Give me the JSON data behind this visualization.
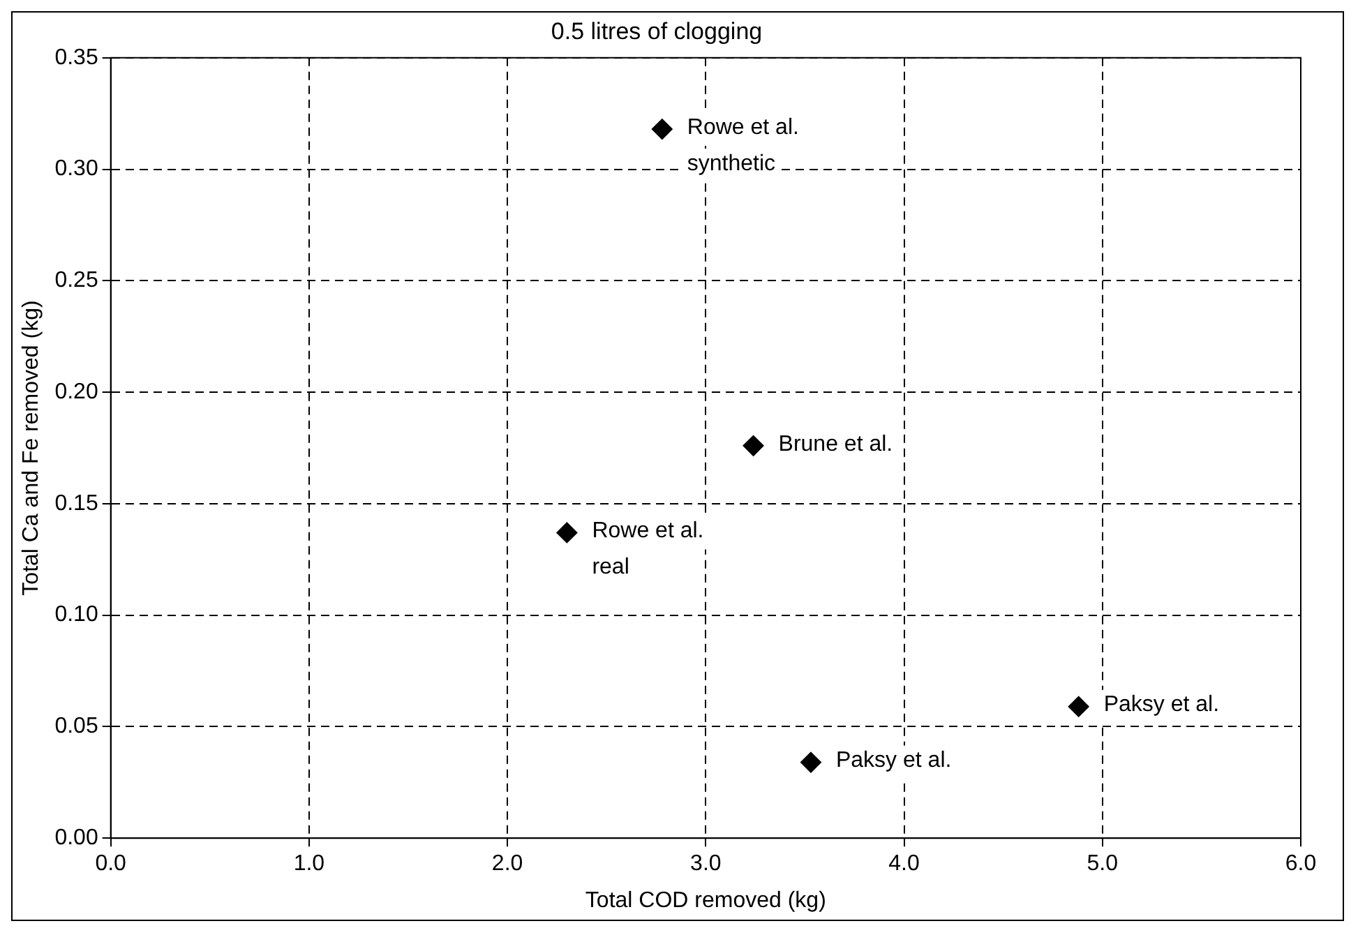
{
  "chart_data": {
    "type": "scatter",
    "title": "0.5 litres of clogging",
    "xlabel": "Total COD removed (kg)",
    "ylabel": "Total Ca and Fe removed (kg)",
    "series": [
      {
        "color": "#000000",
        "x": [
          2.78,
          3.24,
          2.3,
          4.88,
          3.53
        ],
        "values": [
          0.318,
          0.176,
          0.137,
          0.059,
          0.034
        ]
      }
    ],
    "xlim": [
      0,
      6
    ],
    "xticks": [
      {
        "value": 0,
        "label": "0.0"
      },
      {
        "value": 1,
        "label": "1.0"
      },
      {
        "value": 2,
        "label": "2.0"
      },
      {
        "value": 3,
        "label": "3.0"
      },
      {
        "value": 4,
        "label": "4.0"
      },
      {
        "value": 5,
        "label": "5.0"
      },
      {
        "value": 6,
        "label": "6.0"
      }
    ],
    "ylim": [
      0,
      0.35
    ],
    "yticks": [
      {
        "value": 0,
        "label": "0.00"
      },
      {
        "value": 0.05,
        "label": "0.05"
      },
      {
        "value": 0.1,
        "label": "0.10"
      },
      {
        "value": 0.15,
        "label": "0.15"
      },
      {
        "value": 0.2,
        "label": "0.20"
      },
      {
        "value": 0.25,
        "label": "0.25"
      },
      {
        "value": 0.3,
        "label": "0.30"
      },
      {
        "value": 0.35,
        "label": "0.35"
      }
    ],
    "grid": true,
    "marker": "diamond",
    "annotations": [
      {
        "text": "Rowe et al.\nsynthetic",
        "x": 2.78,
        "y": 0.318
      },
      {
        "text": "Brune et al.",
        "x": 3.24,
        "y": 0.176
      },
      {
        "text": "Rowe et al.\nreal",
        "x": 2.3,
        "y": 0.137
      },
      {
        "text": "Paksy et al.",
        "x": 4.88,
        "y": 0.059
      },
      {
        "text": "Paksy et al.",
        "x": 3.53,
        "y": 0.034
      }
    ]
  }
}
